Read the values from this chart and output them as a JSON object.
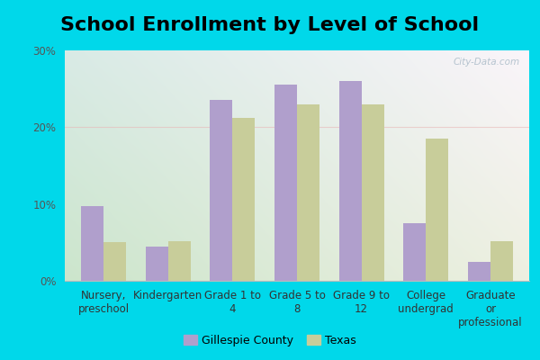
{
  "title": "School Enrollment by Level of School",
  "categories": [
    "Nursery,\npreschool",
    "Kindergarten",
    "Grade 1 to\n4",
    "Grade 5 to\n8",
    "Grade 9 to\n12",
    "College\nundergrad",
    "Graduate\nor\nprofessional"
  ],
  "gillespie": [
    9.7,
    4.4,
    23.5,
    25.5,
    26.0,
    7.5,
    2.5
  ],
  "texas": [
    5.0,
    5.2,
    21.2,
    23.0,
    23.0,
    18.5,
    5.2
  ],
  "gillespie_color": "#b09fcc",
  "texas_color": "#c8cd9a",
  "background_outer": "#00d8ea",
  "bg_topleft": "#c8f0e0",
  "bg_topright": "#f0f8f0",
  "bg_bottomleft": "#b0e8d8",
  "bg_bottomright": "#e0f4ec",
  "ylim": [
    0,
    30
  ],
  "yticks": [
    0,
    10,
    20,
    30
  ],
  "legend_gillespie": "Gillespie County",
  "legend_texas": "Texas",
  "bar_width": 0.35,
  "title_fontsize": 16,
  "tick_fontsize": 8.5,
  "legend_fontsize": 9,
  "watermark_text": "City-Data.com",
  "watermark_color": "#aabbc8"
}
